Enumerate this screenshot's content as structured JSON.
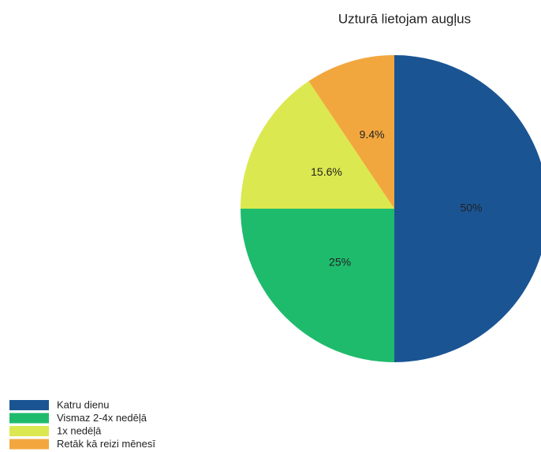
{
  "chart_data": {
    "type": "pie",
    "title": "Uzturā lietojam augļus",
    "categories": [
      "Katru dienu",
      "Vismaz 2-4x nedēļā",
      "1x nedēļā",
      "Retāk kā reizi mēnesī"
    ],
    "values": [
      50,
      25,
      15.6,
      9.4
    ],
    "value_labels": [
      "50%",
      "25%",
      "15.6%",
      "9.4%"
    ],
    "colors": [
      "#1a5493",
      "#1fbb6d",
      "#dbe84f",
      "#f2a73e"
    ],
    "legend": "bottom-left"
  }
}
